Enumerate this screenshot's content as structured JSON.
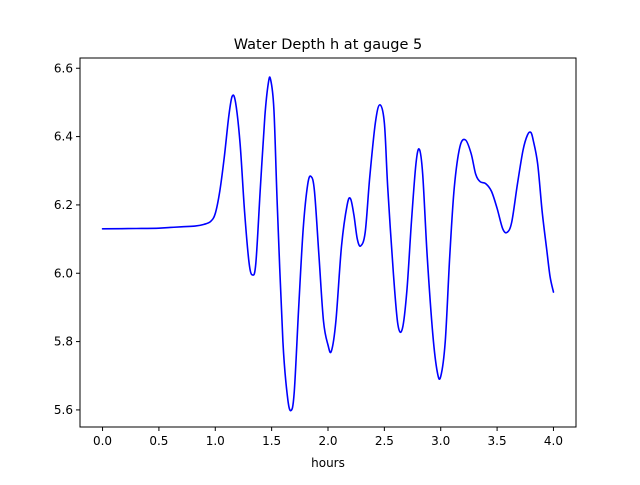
{
  "chart_data": {
    "type": "line",
    "title": "Water Depth h at gauge 5",
    "xlabel": "hours",
    "ylabel": "",
    "xlim": [
      -0.2,
      4.2
    ],
    "ylim": [
      5.55,
      6.63
    ],
    "xticks": [
      0.0,
      0.5,
      1.0,
      1.5,
      2.0,
      2.5,
      3.0,
      3.5,
      4.0
    ],
    "xtick_labels": [
      "0.0",
      "0.5",
      "1.0",
      "1.5",
      "2.0",
      "2.5",
      "3.0",
      "3.5",
      "4.0"
    ],
    "yticks": [
      5.6,
      5.8,
      6.0,
      6.2,
      6.4,
      6.6
    ],
    "ytick_labels": [
      "5.6",
      "5.8",
      "6.0",
      "6.2",
      "6.4",
      "6.6"
    ],
    "grid": false,
    "series": [
      {
        "name": "",
        "color": "#0000ff",
        "points": [
          [
            0.0,
            6.13
          ],
          [
            0.3,
            6.131
          ],
          [
            0.5,
            6.132
          ],
          [
            0.6,
            6.134
          ],
          [
            0.7,
            6.136
          ],
          [
            0.82,
            6.138
          ],
          [
            0.9,
            6.143
          ],
          [
            0.96,
            6.152
          ],
          [
            1.0,
            6.175
          ],
          [
            1.04,
            6.24
          ],
          [
            1.08,
            6.34
          ],
          [
            1.12,
            6.46
          ],
          [
            1.15,
            6.518
          ],
          [
            1.18,
            6.5
          ],
          [
            1.22,
            6.38
          ],
          [
            1.26,
            6.18
          ],
          [
            1.3,
            6.03
          ],
          [
            1.33,
            5.995
          ],
          [
            1.36,
            6.03
          ],
          [
            1.4,
            6.25
          ],
          [
            1.44,
            6.46
          ],
          [
            1.47,
            6.555
          ],
          [
            1.49,
            6.568
          ],
          [
            1.52,
            6.48
          ],
          [
            1.55,
            6.2
          ],
          [
            1.6,
            5.8
          ],
          [
            1.64,
            5.64
          ],
          [
            1.67,
            5.598
          ],
          [
            1.7,
            5.65
          ],
          [
            1.74,
            5.9
          ],
          [
            1.78,
            6.13
          ],
          [
            1.82,
            6.26
          ],
          [
            1.85,
            6.283
          ],
          [
            1.88,
            6.24
          ],
          [
            1.92,
            6.05
          ],
          [
            1.96,
            5.86
          ],
          [
            2.0,
            5.79
          ],
          [
            2.03,
            5.772
          ],
          [
            2.07,
            5.86
          ],
          [
            2.12,
            6.08
          ],
          [
            2.17,
            6.2
          ],
          [
            2.2,
            6.218
          ],
          [
            2.23,
            6.17
          ],
          [
            2.26,
            6.1
          ],
          [
            2.29,
            6.08
          ],
          [
            2.33,
            6.12
          ],
          [
            2.37,
            6.28
          ],
          [
            2.42,
            6.44
          ],
          [
            2.46,
            6.493
          ],
          [
            2.5,
            6.44
          ],
          [
            2.53,
            6.25
          ],
          [
            2.58,
            6.0
          ],
          [
            2.62,
            5.85
          ],
          [
            2.66,
            5.838
          ],
          [
            2.7,
            5.95
          ],
          [
            2.74,
            6.15
          ],
          [
            2.78,
            6.32
          ],
          [
            2.81,
            6.363
          ],
          [
            2.84,
            6.29
          ],
          [
            2.88,
            6.05
          ],
          [
            2.93,
            5.82
          ],
          [
            2.97,
            5.71
          ],
          [
            3.0,
            5.698
          ],
          [
            3.04,
            5.8
          ],
          [
            3.08,
            6.05
          ],
          [
            3.12,
            6.25
          ],
          [
            3.17,
            6.37
          ],
          [
            3.22,
            6.39
          ],
          [
            3.27,
            6.35
          ],
          [
            3.31,
            6.29
          ],
          [
            3.35,
            6.268
          ],
          [
            3.4,
            6.262
          ],
          [
            3.45,
            6.24
          ],
          [
            3.5,
            6.19
          ],
          [
            3.55,
            6.13
          ],
          [
            3.59,
            6.12
          ],
          [
            3.63,
            6.15
          ],
          [
            3.68,
            6.26
          ],
          [
            3.73,
            6.36
          ],
          [
            3.77,
            6.405
          ],
          [
            3.8,
            6.412
          ],
          [
            3.82,
            6.39
          ],
          [
            3.86,
            6.32
          ],
          [
            3.9,
            6.18
          ],
          [
            3.94,
            6.07
          ],
          [
            3.97,
            5.99
          ],
          [
            4.0,
            5.945
          ]
        ]
      }
    ]
  }
}
